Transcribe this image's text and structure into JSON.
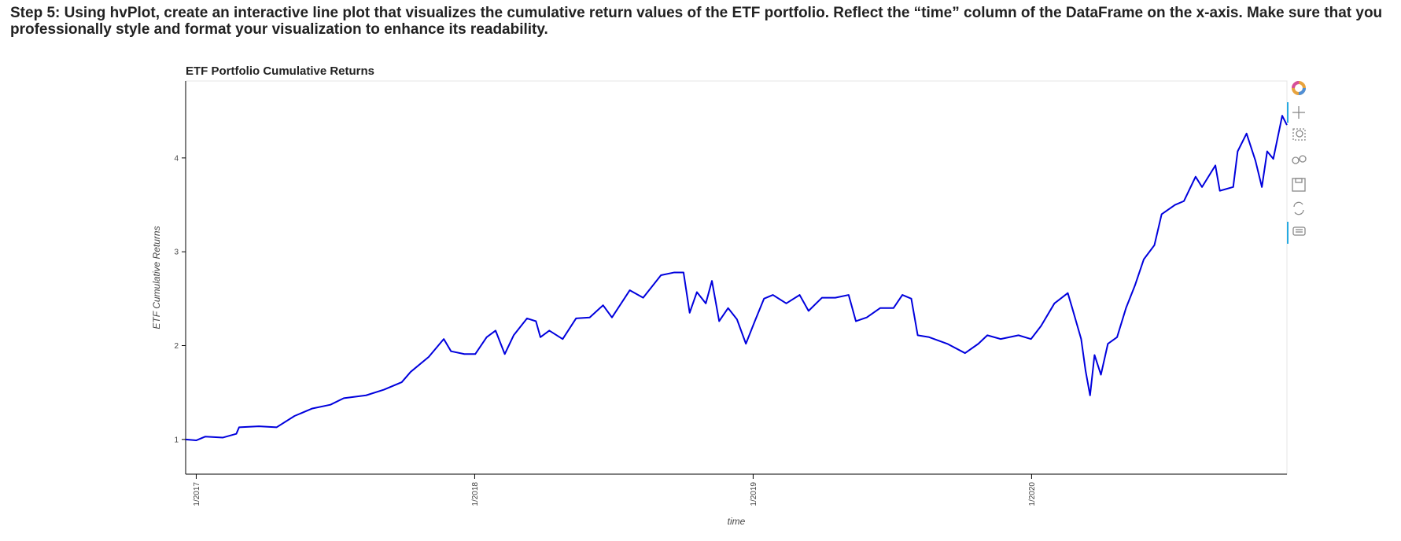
{
  "heading": "Step 5: Using hvPlot, create an interactive line plot that visualizes the cumulative return values of the ETF portfolio. Reflect the “time” column of the DataFrame on the x-axis. Make sure that you professionally style and format your visualization to enhance its readability.",
  "chart_data": {
    "type": "line",
    "title": "ETF Portfolio Cumulative Returns",
    "x_label": "time",
    "y_label": "ETF Cumulative Returns",
    "color": "#0000dd",
    "xlim": [
      2016.962,
      2020.917
    ],
    "xticks": [
      {
        "value": 2017,
        "label": "1/2017"
      },
      {
        "value": 2018,
        "label": "1/2018"
      },
      {
        "value": 2019,
        "label": "1/2019"
      },
      {
        "value": 2020,
        "label": "1/2020"
      }
    ],
    "ylim": [
      0.63,
      4.82
    ],
    "yticks": [
      1,
      2,
      3,
      4
    ],
    "x": [
      2016.962,
      2017.0,
      2017.032,
      2017.096,
      2017.144,
      2017.154,
      2017.225,
      2017.289,
      2017.353,
      2017.417,
      2017.482,
      2017.53,
      2017.61,
      2017.674,
      2017.738,
      2017.77,
      2017.835,
      2017.889,
      2017.915,
      2017.963,
      2018.002,
      2018.043,
      2018.075,
      2018.108,
      2018.14,
      2018.188,
      2018.22,
      2018.236,
      2018.268,
      2018.316,
      2018.364,
      2018.413,
      2018.461,
      2018.493,
      2018.557,
      2018.605,
      2018.669,
      2018.717,
      2018.75,
      2018.772,
      2018.798,
      2018.83,
      2018.852,
      2018.878,
      2018.91,
      2018.942,
      2018.974,
      2019.006,
      2019.039,
      2019.071,
      2019.119,
      2019.167,
      2019.199,
      2019.247,
      2019.295,
      2019.343,
      2019.369,
      2019.408,
      2019.456,
      2019.504,
      2019.536,
      2019.568,
      2019.591,
      2019.632,
      2019.697,
      2019.761,
      2019.809,
      2019.841,
      2019.889,
      2019.953,
      2019.998,
      2020.034,
      2020.082,
      2020.13,
      2020.146,
      2020.178,
      2020.194,
      2020.21,
      2020.226,
      2020.249,
      2020.274,
      2020.307,
      2020.339,
      2020.371,
      2020.403,
      2020.441,
      2020.467,
      2020.515,
      2020.547,
      2020.589,
      2020.612,
      2020.66,
      2020.676,
      2020.724,
      2020.74,
      2020.772,
      2020.804,
      2020.827,
      2020.846,
      2020.868,
      2020.9,
      2020.917
    ],
    "values": [
      1.0,
      0.99,
      1.03,
      1.02,
      1.06,
      1.13,
      1.14,
      1.13,
      1.25,
      1.33,
      1.37,
      1.44,
      1.47,
      1.53,
      1.61,
      1.72,
      1.88,
      2.07,
      1.94,
      1.91,
      1.91,
      2.09,
      2.16,
      1.91,
      2.11,
      2.29,
      2.26,
      2.09,
      2.16,
      2.07,
      2.29,
      2.3,
      2.43,
      2.3,
      2.59,
      2.51,
      2.75,
      2.78,
      2.78,
      2.35,
      2.57,
      2.45,
      2.69,
      2.26,
      2.4,
      2.28,
      2.02,
      2.26,
      2.5,
      2.54,
      2.45,
      2.54,
      2.37,
      2.51,
      2.51,
      2.54,
      2.26,
      2.3,
      2.4,
      2.4,
      2.54,
      2.5,
      2.11,
      2.09,
      2.02,
      1.92,
      2.02,
      2.11,
      2.07,
      2.11,
      2.07,
      2.21,
      2.45,
      2.56,
      2.4,
      2.07,
      1.73,
      1.47,
      1.9,
      1.69,
      2.02,
      2.09,
      2.4,
      2.64,
      2.92,
      3.07,
      3.4,
      3.5,
      3.54,
      3.8,
      3.69,
      3.92,
      3.65,
      3.69,
      4.07,
      4.26,
      3.97,
      3.69,
      4.07,
      3.99,
      4.45,
      4.35
    ]
  }
}
